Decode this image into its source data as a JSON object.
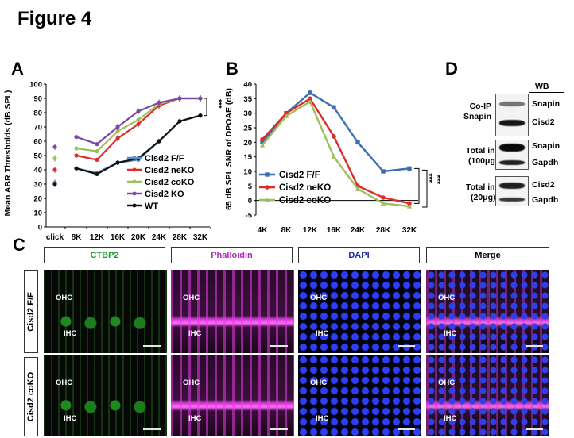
{
  "figure_title": "Figure 4",
  "panel_labels": {
    "a": "A",
    "b": "B",
    "c": "C",
    "d": "D"
  },
  "colors": {
    "ff": "#5b8ec7",
    "neko": "#e02b2b",
    "coko": "#9dc05b",
    "ko": "#7b4aa5",
    "wt": "#111111",
    "dpoae_ff": "#3c6fae"
  },
  "chart_data": [
    {
      "id": "A",
      "type": "line",
      "title": "",
      "xlabel": "",
      "ylabel": "Mean ABR Thresholds (dB SPL)",
      "ylim": [
        0,
        100
      ],
      "yticks": [
        "0",
        "10",
        "20",
        "30",
        "40",
        "50",
        "60",
        "70",
        "80",
        "90",
        "100"
      ],
      "categories": [
        "click",
        "8K",
        "12K",
        "16K",
        "20K",
        "24K",
        "28K",
        "32K"
      ],
      "significance": "***",
      "legend": [
        "Cisd2 F/F",
        "Cisd2 neKO",
        "Cisd2 coKO",
        "Cisd2 KO",
        "WT"
      ],
      "series": [
        {
          "name": "Cisd2 F/F",
          "color_key": "ff",
          "click": 31,
          "values": [
            null,
            41,
            38,
            45,
            47,
            60,
            74,
            78
          ]
        },
        {
          "name": "Cisd2 neKO",
          "color_key": "neko",
          "click": 40,
          "values": [
            null,
            50,
            47,
            62,
            72,
            85,
            90,
            90
          ]
        },
        {
          "name": "Cisd2 coKO",
          "color_key": "coko",
          "click": 48,
          "values": [
            null,
            55,
            53,
            67,
            75,
            86,
            90,
            90
          ]
        },
        {
          "name": "Cisd2 KO",
          "color_key": "ko",
          "click": 56,
          "values": [
            null,
            63,
            58,
            70,
            81,
            87,
            90,
            90
          ]
        },
        {
          "name": "WT",
          "color_key": "wt",
          "click": 30,
          "values": [
            null,
            41,
            37,
            45,
            48,
            60,
            74,
            78
          ]
        }
      ]
    },
    {
      "id": "B",
      "type": "line",
      "title": "",
      "xlabel": "",
      "ylabel": "65 dB SPL SNR of DPOAE (dB)",
      "ylim": [
        -5,
        40
      ],
      "yticks": [
        "-5",
        "0",
        "5",
        "10",
        "15",
        "20",
        "25",
        "30",
        "35",
        "40"
      ],
      "categories": [
        "4K",
        "8K",
        "12K",
        "16K",
        "24K",
        "28K",
        "32K"
      ],
      "significance": [
        "***",
        "***"
      ],
      "legend": [
        "Cisd2 F/F",
        "Cisd2 neKO",
        "Cisd2 coKO"
      ],
      "series": [
        {
          "name": "Cisd2 F/F",
          "color_key": "dpoae_ff",
          "values": [
            20,
            30,
            37,
            32,
            20,
            10,
            11
          ]
        },
        {
          "name": "Cisd2 neKO",
          "color_key": "neko",
          "values": [
            21,
            30,
            35,
            22,
            5,
            1,
            -1
          ]
        },
        {
          "name": "Cisd2 coKO",
          "color_key": "coko",
          "values": [
            19,
            29,
            34,
            15,
            4,
            -1,
            -2
          ]
        }
      ]
    }
  ],
  "panel_c": {
    "column_headers": [
      "CTBP2",
      "Phalloidin",
      "DAPI",
      "Merge"
    ],
    "row_labels": [
      "Cisd2 F/F",
      "Cisd2 coKO"
    ],
    "ohc": "OHC",
    "ihc": "IHC"
  },
  "panel_d": {
    "wb": "WB",
    "coip": "Co-IP",
    "coip2": "Snapin",
    "ti1": "Total input",
    "ti1b": "(100μg)",
    "ti2": "Total input",
    "ti2b": "(20μg)",
    "bands": [
      "Snapin",
      "Cisd2",
      "Snapin",
      "Gapdh",
      "Cisd2",
      "Gapdh"
    ]
  }
}
